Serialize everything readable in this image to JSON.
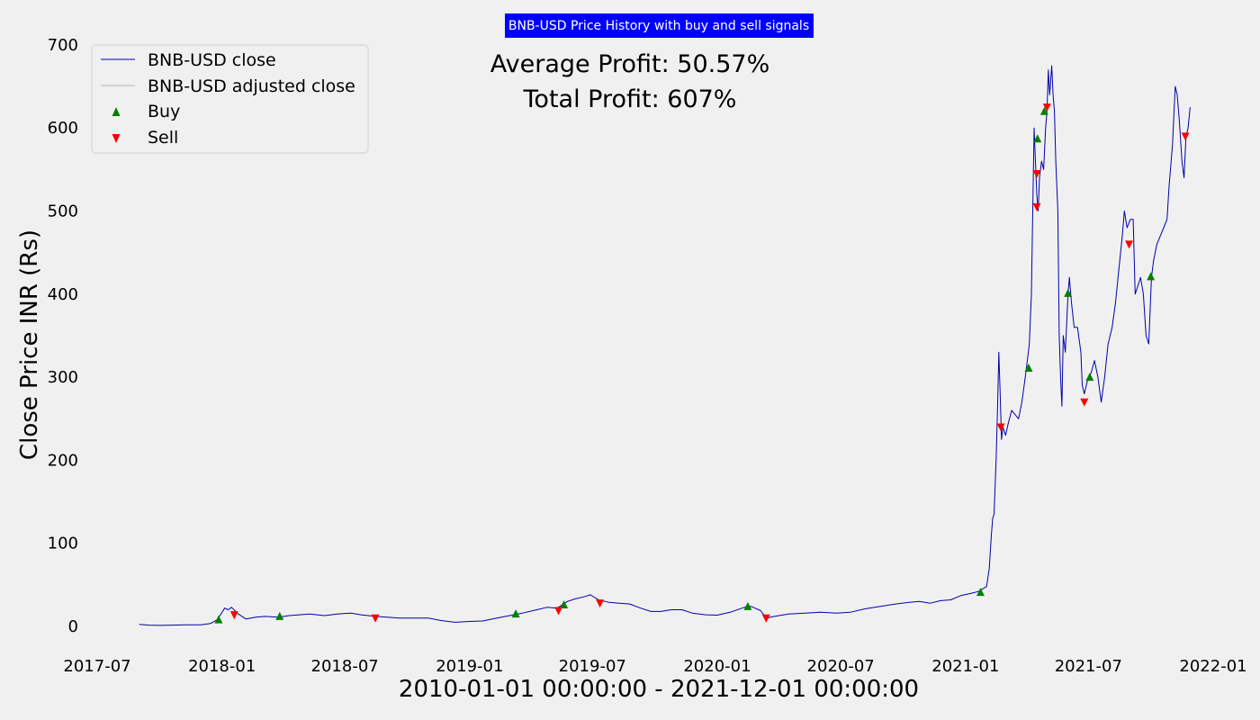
{
  "chart_data": {
    "type": "line",
    "title": "BNB-USD Price History with buy and sell signals",
    "xlabel": "2010-01-01 00:00:00 - 2021-12-01 00:00:00",
    "ylabel": "Close Price INR (Rs)",
    "annotations": [
      "Average Profit: 50.57%",
      "Total Profit: 607%"
    ],
    "xlim": [
      "2017-07-01",
      "2022-01-01"
    ],
    "ylim": [
      -30,
      700
    ],
    "x_ticks": [
      "2017-07",
      "2018-01",
      "2018-07",
      "2019-01",
      "2019-07",
      "2020-01",
      "2020-07",
      "2021-01",
      "2021-07",
      "2022-01"
    ],
    "y_ticks": [
      0,
      100,
      200,
      300,
      400,
      500,
      600,
      700
    ],
    "grid": false,
    "legend": {
      "position": "top-left",
      "entries": [
        "BNB-USD close",
        "BNB-USD adjusted close",
        "Buy",
        "Sell"
      ]
    },
    "colors": {
      "close": "#0000aa",
      "adjusted_close": "#c8c8c8",
      "buy": "#008000",
      "sell": "#ff0000",
      "title_bg": "#0000ff",
      "background": "#f0f0f0"
    },
    "series": [
      {
        "name": "BNB-USD close",
        "points": [
          [
            "2017-09-01",
            2.5
          ],
          [
            "2017-09-15",
            1.5
          ],
          [
            "2017-10-01",
            1.2
          ],
          [
            "2017-10-20",
            1.5
          ],
          [
            "2017-11-10",
            1.8
          ],
          [
            "2017-12-01",
            2.0
          ],
          [
            "2017-12-15",
            3.5
          ],
          [
            "2017-12-25",
            8
          ],
          [
            "2018-01-05",
            22
          ],
          [
            "2018-01-10",
            20
          ],
          [
            "2018-01-15",
            23
          ],
          [
            "2018-01-25",
            15
          ],
          [
            "2018-02-05",
            9
          ],
          [
            "2018-02-20",
            11
          ],
          [
            "2018-03-05",
            12
          ],
          [
            "2018-03-25",
            11
          ],
          [
            "2018-04-10",
            13
          ],
          [
            "2018-04-25",
            14
          ],
          [
            "2018-05-10",
            15
          ],
          [
            "2018-06-01",
            13
          ],
          [
            "2018-06-20",
            15
          ],
          [
            "2018-07-10",
            16
          ],
          [
            "2018-07-25",
            14
          ],
          [
            "2018-08-15",
            12
          ],
          [
            "2018-09-01",
            11
          ],
          [
            "2018-09-20",
            10
          ],
          [
            "2018-10-10",
            10
          ],
          [
            "2018-11-01",
            10
          ],
          [
            "2018-11-20",
            7
          ],
          [
            "2018-12-10",
            5
          ],
          [
            "2019-01-01",
            6
          ],
          [
            "2019-01-20",
            6.5
          ],
          [
            "2019-02-10",
            10
          ],
          [
            "2019-03-01",
            13
          ],
          [
            "2019-03-20",
            16
          ],
          [
            "2019-04-10",
            20
          ],
          [
            "2019-04-25",
            23
          ],
          [
            "2019-05-10",
            22
          ],
          [
            "2019-05-25",
            30
          ],
          [
            "2019-06-05",
            33
          ],
          [
            "2019-06-20",
            36
          ],
          [
            "2019-06-28",
            38
          ],
          [
            "2019-07-10",
            32
          ],
          [
            "2019-07-25",
            29
          ],
          [
            "2019-08-10",
            28
          ],
          [
            "2019-08-25",
            27
          ],
          [
            "2019-09-10",
            22
          ],
          [
            "2019-09-25",
            18
          ],
          [
            "2019-10-10",
            18
          ],
          [
            "2019-10-25",
            20
          ],
          [
            "2019-11-10",
            20
          ],
          [
            "2019-11-25",
            16
          ],
          [
            "2019-12-15",
            14
          ],
          [
            "2020-01-01",
            13.5
          ],
          [
            "2020-01-20",
            17
          ],
          [
            "2020-02-10",
            23
          ],
          [
            "2020-02-20",
            24
          ],
          [
            "2020-03-05",
            19
          ],
          [
            "2020-03-13",
            10
          ],
          [
            "2020-03-25",
            12
          ],
          [
            "2020-04-15",
            15
          ],
          [
            "2020-05-10",
            16
          ],
          [
            "2020-06-01",
            17
          ],
          [
            "2020-06-25",
            16
          ],
          [
            "2020-07-15",
            17
          ],
          [
            "2020-08-05",
            21
          ],
          [
            "2020-08-20",
            23
          ],
          [
            "2020-09-05",
            25
          ],
          [
            "2020-09-20",
            27
          ],
          [
            "2020-10-10",
            29
          ],
          [
            "2020-10-25",
            30
          ],
          [
            "2020-11-10",
            28
          ],
          [
            "2020-11-25",
            31
          ],
          [
            "2020-12-10",
            32
          ],
          [
            "2020-12-25",
            37
          ],
          [
            "2021-01-10",
            40
          ],
          [
            "2021-01-20",
            42
          ],
          [
            "2021-02-01",
            48
          ],
          [
            "2021-02-05",
            70
          ],
          [
            "2021-02-08",
            110
          ],
          [
            "2021-02-10",
            130
          ],
          [
            "2021-02-12",
            135
          ],
          [
            "2021-02-15",
            200
          ],
          [
            "2021-02-17",
            260
          ],
          [
            "2021-02-19",
            330
          ],
          [
            "2021-02-21",
            280
          ],
          [
            "2021-02-23",
            225
          ],
          [
            "2021-02-25",
            240
          ],
          [
            "2021-03-01",
            230
          ],
          [
            "2021-03-05",
            245
          ],
          [
            "2021-03-10",
            260
          ],
          [
            "2021-03-15",
            255
          ],
          [
            "2021-03-20",
            250
          ],
          [
            "2021-03-25",
            270
          ],
          [
            "2021-03-30",
            300
          ],
          [
            "2021-04-02",
            320
          ],
          [
            "2021-04-05",
            340
          ],
          [
            "2021-04-08",
            400
          ],
          [
            "2021-04-10",
            500
          ],
          [
            "2021-04-12",
            600
          ],
          [
            "2021-04-14",
            560
          ],
          [
            "2021-04-16",
            520
          ],
          [
            "2021-04-18",
            500
          ],
          [
            "2021-04-20",
            540
          ],
          [
            "2021-04-23",
            560
          ],
          [
            "2021-04-26",
            550
          ],
          [
            "2021-04-29",
            600
          ],
          [
            "2021-05-01",
            620
          ],
          [
            "2021-05-03",
            670
          ],
          [
            "2021-05-05",
            640
          ],
          [
            "2021-05-08",
            675
          ],
          [
            "2021-05-10",
            640
          ],
          [
            "2021-05-12",
            620
          ],
          [
            "2021-05-14",
            560
          ],
          [
            "2021-05-17",
            500
          ],
          [
            "2021-05-19",
            350
          ],
          [
            "2021-05-21",
            300
          ],
          [
            "2021-05-23",
            265
          ],
          [
            "2021-05-25",
            350
          ],
          [
            "2021-05-28",
            330
          ],
          [
            "2021-06-01",
            400
          ],
          [
            "2021-06-03",
            420
          ],
          [
            "2021-06-06",
            390
          ],
          [
            "2021-06-10",
            360
          ],
          [
            "2021-06-15",
            360
          ],
          [
            "2021-06-20",
            330
          ],
          [
            "2021-06-22",
            290
          ],
          [
            "2021-06-25",
            280
          ],
          [
            "2021-06-28",
            290
          ],
          [
            "2021-07-01",
            300
          ],
          [
            "2021-07-05",
            305
          ],
          [
            "2021-07-10",
            320
          ],
          [
            "2021-07-15",
            300
          ],
          [
            "2021-07-20",
            270
          ],
          [
            "2021-07-25",
            300
          ],
          [
            "2021-07-30",
            340
          ],
          [
            "2021-08-05",
            360
          ],
          [
            "2021-08-10",
            390
          ],
          [
            "2021-08-15",
            430
          ],
          [
            "2021-08-20",
            470
          ],
          [
            "2021-08-23",
            500
          ],
          [
            "2021-08-27",
            480
          ],
          [
            "2021-09-01",
            490
          ],
          [
            "2021-09-05",
            490
          ],
          [
            "2021-09-08",
            400
          ],
          [
            "2021-09-12",
            410
          ],
          [
            "2021-09-16",
            420
          ],
          [
            "2021-09-20",
            400
          ],
          [
            "2021-09-24",
            350
          ],
          [
            "2021-09-28",
            340
          ],
          [
            "2021-10-02",
            420
          ],
          [
            "2021-10-05",
            440
          ],
          [
            "2021-10-10",
            460
          ],
          [
            "2021-10-15",
            470
          ],
          [
            "2021-10-20",
            480
          ],
          [
            "2021-10-25",
            490
          ],
          [
            "2021-10-28",
            530
          ],
          [
            "2021-11-02",
            580
          ],
          [
            "2021-11-06",
            650
          ],
          [
            "2021-11-09",
            640
          ],
          [
            "2021-11-12",
            610
          ],
          [
            "2021-11-16",
            560
          ],
          [
            "2021-11-19",
            540
          ],
          [
            "2021-11-22",
            590
          ],
          [
            "2021-11-25",
            600
          ],
          [
            "2021-11-28",
            625
          ]
        ]
      },
      {
        "name": "Buy",
        "points": [
          [
            "2017-12-27",
            8
          ],
          [
            "2018-03-27",
            12
          ],
          [
            "2019-03-10",
            15
          ],
          [
            "2019-05-20",
            26
          ],
          [
            "2020-02-15",
            24
          ],
          [
            "2021-01-23",
            41
          ],
          [
            "2021-04-04",
            311
          ],
          [
            "2021-04-17",
            587
          ],
          [
            "2021-04-27",
            620
          ],
          [
            "2021-06-01",
            401
          ],
          [
            "2021-07-03",
            300
          ],
          [
            "2021-10-01",
            421
          ]
        ]
      },
      {
        "name": "Sell",
        "points": [
          [
            "2018-01-19",
            14
          ],
          [
            "2018-08-15",
            10
          ],
          [
            "2019-05-12",
            19
          ],
          [
            "2019-07-12",
            28
          ],
          [
            "2020-03-13",
            10
          ],
          [
            "2021-02-22",
            240
          ],
          [
            "2021-04-16",
            505
          ],
          [
            "2021-04-16",
            545
          ],
          [
            "2021-05-01",
            625
          ],
          [
            "2021-06-25",
            270
          ],
          [
            "2021-08-30",
            460
          ],
          [
            "2021-11-21",
            590
          ]
        ]
      }
    ]
  }
}
